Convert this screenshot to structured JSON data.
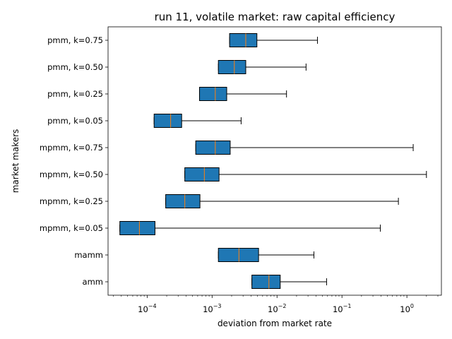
{
  "chart_data": {
    "type": "boxplot",
    "orientation": "horizontal",
    "title": "run 11, volatile market: raw capital efficiency",
    "xlabel": "deviation from market rate",
    "ylabel": "market makers",
    "xscale": "log",
    "xlim": [
      2.5e-05,
      3.4
    ],
    "x_ticks": [
      {
        "value": 0.0001,
        "base": "10",
        "exp": "−4"
      },
      {
        "value": 0.001,
        "base": "10",
        "exp": "−3"
      },
      {
        "value": 0.01,
        "base": "10",
        "exp": "−2"
      },
      {
        "value": 0.1,
        "base": "10",
        "exp": "−1"
      },
      {
        "value": 1,
        "base": "10",
        "exp": "0"
      }
    ],
    "grid": false,
    "box_color": "#1f77b4",
    "median_color": "#ff7f0e",
    "categories": [
      "pmm, k=0.75",
      "pmm, k=0.50",
      "pmm, k=0.25",
      "pmm, k=0.05",
      "mpmm, k=0.75",
      "mpmm, k=0.50",
      "mpmm, k=0.25",
      "mpmm, k=0.05",
      "mamm",
      "amm"
    ],
    "boxes": [
      {
        "q1": 0.00186,
        "median": 0.0033,
        "q3": 0.0049,
        "whisker_low": 0.00186,
        "whisker_high": 0.042
      },
      {
        "q1": 0.00125,
        "median": 0.0022,
        "q3": 0.0033,
        "whisker_low": 0.00125,
        "whisker_high": 0.028
      },
      {
        "q1": 0.00064,
        "median": 0.00112,
        "q3": 0.00168,
        "whisker_low": 0.00064,
        "whisker_high": 0.014
      },
      {
        "q1": 0.000128,
        "median": 0.00023,
        "q3": 0.00034,
        "whisker_low": 0.000128,
        "whisker_high": 0.0028
      },
      {
        "q1": 0.00056,
        "median": 0.00112,
        "q3": 0.0019,
        "whisker_low": 0.00056,
        "whisker_high": 1.25
      },
      {
        "q1": 0.00038,
        "median": 0.00076,
        "q3": 0.00128,
        "whisker_low": 0.00038,
        "whisker_high": 2.0
      },
      {
        "q1": 0.000193,
        "median": 0.00038,
        "q3": 0.00065,
        "whisker_low": 0.000193,
        "whisker_high": 0.74
      },
      {
        "q1": 3.8e-05,
        "median": 7.6e-05,
        "q3": 0.000132,
        "whisker_low": 3.8e-05,
        "whisker_high": 0.39
      },
      {
        "q1": 0.00125,
        "median": 0.00259,
        "q3": 0.0052,
        "whisker_low": 0.00125,
        "whisker_high": 0.037
      },
      {
        "q1": 0.0041,
        "median": 0.0075,
        "q3": 0.0112,
        "whisker_low": 0.0041,
        "whisker_high": 0.058
      }
    ]
  }
}
